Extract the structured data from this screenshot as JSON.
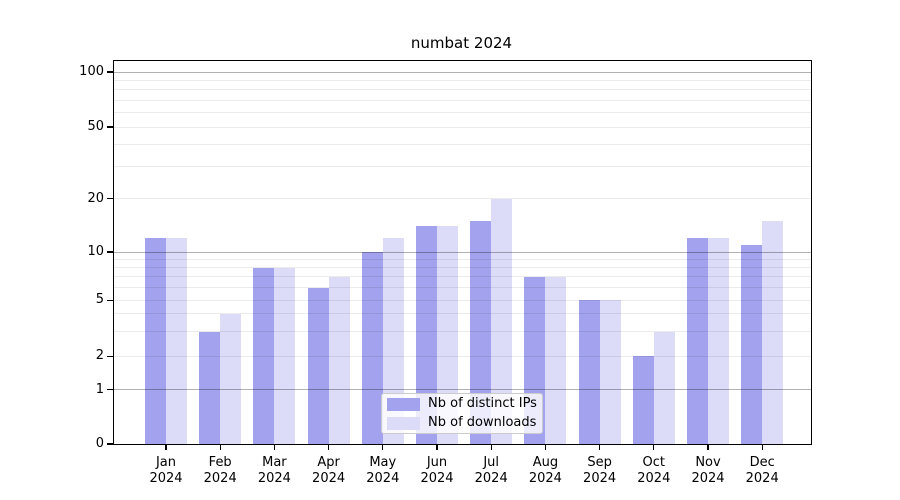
{
  "chart_data": {
    "type": "bar",
    "title": "numbat 2024",
    "categories": [
      "Jan",
      "Feb",
      "Mar",
      "Apr",
      "May",
      "Jun",
      "Jul",
      "Aug",
      "Sep",
      "Oct",
      "Nov",
      "Dec"
    ],
    "year_label": "2024",
    "series": [
      {
        "name": "Nb of distinct IPs",
        "color": "#a2a2ee",
        "values": [
          12,
          3,
          8,
          6,
          10,
          14,
          15,
          7,
          5,
          2,
          12,
          11
        ]
      },
      {
        "name": "Nb of downloads",
        "color": "#dcdcf8",
        "values": [
          12,
          4,
          8,
          7,
          12,
          14,
          20,
          7,
          5,
          3,
          12,
          15
        ]
      }
    ],
    "xlabel": "",
    "ylabel": "",
    "yscale": "log-like",
    "ylim": [
      0,
      100
    ],
    "ytick_values": [
      100,
      50,
      20,
      10,
      5,
      2,
      1,
      0
    ],
    "ytick_labels": [
      "100",
      "50",
      "20",
      "10",
      "5",
      "2",
      "1",
      "0"
    ],
    "major_grid_values": [
      1,
      10,
      100
    ],
    "minor_grid_values": [
      2,
      3,
      4,
      5,
      6,
      7,
      8,
      9,
      20,
      30,
      40,
      50,
      60,
      70,
      80,
      90
    ],
    "grid": true,
    "legend_position": "lower center inside plot",
    "colors": {
      "major_grid": "#b3b3b3",
      "minor_grid": "#ebebeb",
      "axis": "#000000",
      "background": "#ffffff"
    }
  }
}
